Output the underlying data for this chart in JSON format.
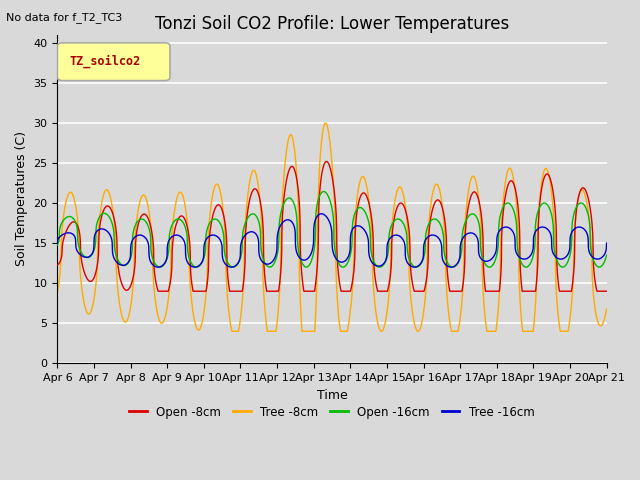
{
  "title": "Tonzi Soil CO2 Profile: Lower Temperatures",
  "subtitle": "No data for f_T2_TC3",
  "xlabel": "Time",
  "ylabel": "Soil Temperatures (C)",
  "ylim": [
    0,
    41
  ],
  "yticks": [
    0,
    5,
    10,
    15,
    20,
    25,
    30,
    35,
    40
  ],
  "x_labels": [
    "Apr 6",
    "Apr 7",
    "Apr 8",
    "Apr 9",
    "Apr 10",
    "Apr 11",
    "Apr 12",
    "Apr 13",
    "Apr 14",
    "Apr 15",
    "Apr 16",
    "Apr 17",
    "Apr 18",
    "Apr 19",
    "Apr 20",
    "Apr 21"
  ],
  "legend_label": "TZ_soilco2",
  "series": [
    {
      "label": "Open -8cm",
      "color": "#dd0000"
    },
    {
      "label": "Tree -8cm",
      "color": "#ffaa00"
    },
    {
      "label": "Open -16cm",
      "color": "#00bb00"
    },
    {
      "label": "Tree -16cm",
      "color": "#0000cc"
    }
  ],
  "background_color": "#d9d9d9",
  "plot_bg_color": "#d9d9d9",
  "grid_color": "#ffffff",
  "title_fontsize": 12,
  "axis_fontsize": 9,
  "tick_fontsize": 8,
  "legend_box_color": "#ffff99",
  "legend_box_edge": "#aaaaaa"
}
